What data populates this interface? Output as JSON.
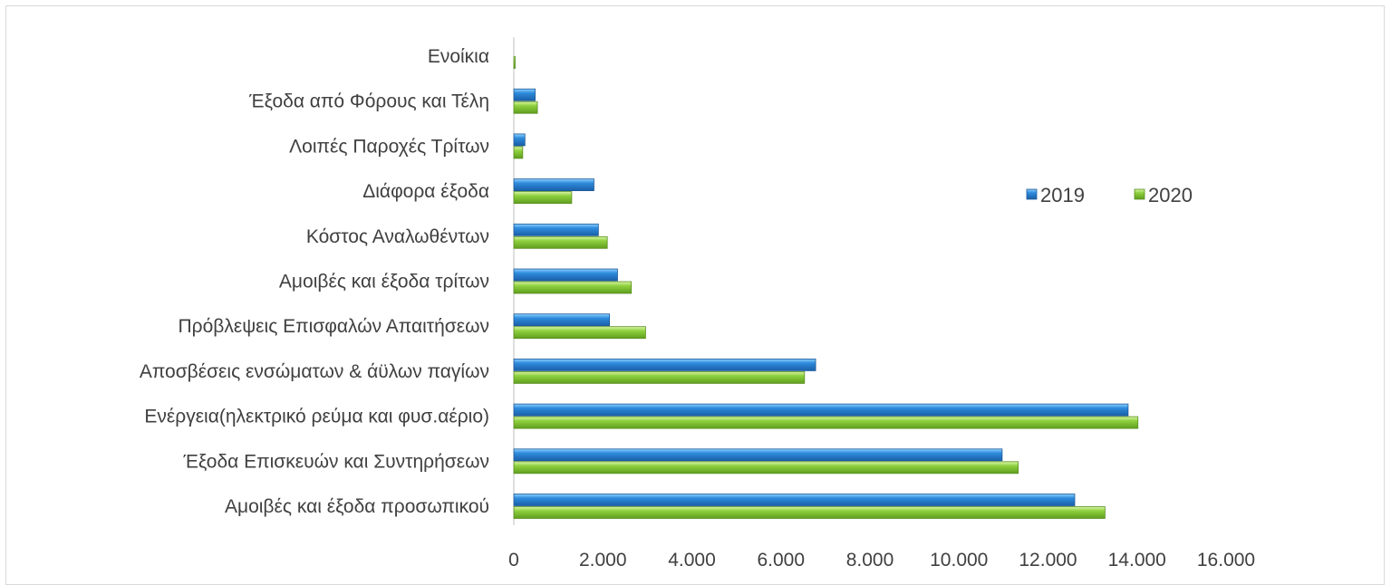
{
  "chart_data": {
    "type": "bar",
    "orientation": "horizontal",
    "categories": [
      "Ενοίκια",
      "Έξοδα από Φόρους και Τέλη",
      "Λοιπές Παροχές Τρίτων",
      "Διάφορα έξοδα",
      "Κόστος Αναλωθέντων",
      "Αμοιβές και έξοδα τρίτων",
      "Πρόβλεψεις Επισφαλών Απαιτήσεων",
      "Αποσβέσεις ενσώματων & άϋλων παγίων",
      "Ενέργεια(ηλεκτρικό ρεύμα και φυσ.αέριο)",
      "Έξοδα Επισκευών και Συντηρήσεων",
      "Αμοιβές και έξοδα προσωπικού"
    ],
    "series": [
      {
        "name": "2019",
        "color": "#2e8bdc",
        "values": [
          0,
          480,
          250,
          1800,
          1900,
          2330,
          2150,
          6780,
          13800,
          10970,
          12600
        ]
      },
      {
        "name": "2020",
        "color": "#8fd13f",
        "values": [
          30,
          530,
          200,
          1300,
          2100,
          2640,
          2960,
          6530,
          14020,
          11330,
          13280
        ]
      }
    ],
    "xticks": [
      "0",
      "2.000",
      "4.000",
      "6.000",
      "8.000",
      "10.000",
      "12.000",
      "14.000",
      "16.000"
    ],
    "xlim": [
      0,
      16000
    ],
    "legend_position": "right",
    "grid": false
  }
}
